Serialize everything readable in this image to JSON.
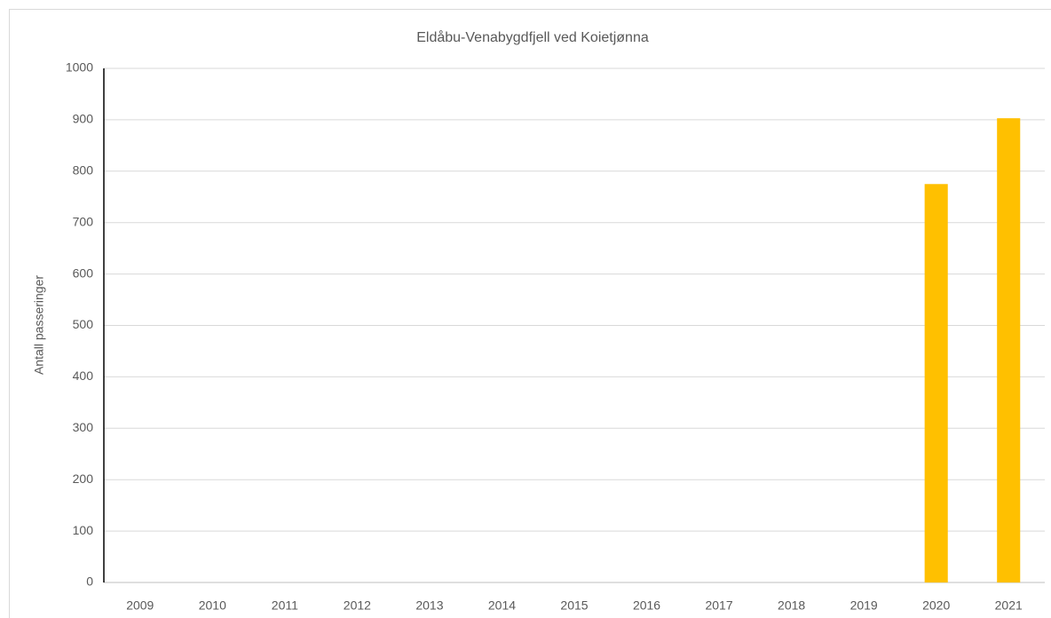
{
  "chart_data": {
    "type": "bar",
    "title": "Eldåbu-Venabygdfjell ved Koietjønna",
    "y_label": "Antall passeringer",
    "categories": [
      "2009",
      "2010",
      "2011",
      "2012",
      "2013",
      "2014",
      "2015",
      "2016",
      "2017",
      "2018",
      "2019",
      "2020",
      "2021"
    ],
    "values": [
      null,
      null,
      null,
      null,
      null,
      null,
      null,
      null,
      null,
      null,
      null,
      775,
      903
    ],
    "color": "#ffc000",
    "ylim": [
      0,
      1000
    ],
    "yticks": [
      0,
      100,
      200,
      300,
      400,
      500,
      600,
      700,
      800,
      900,
      1000
    ],
    "grid": true
  }
}
